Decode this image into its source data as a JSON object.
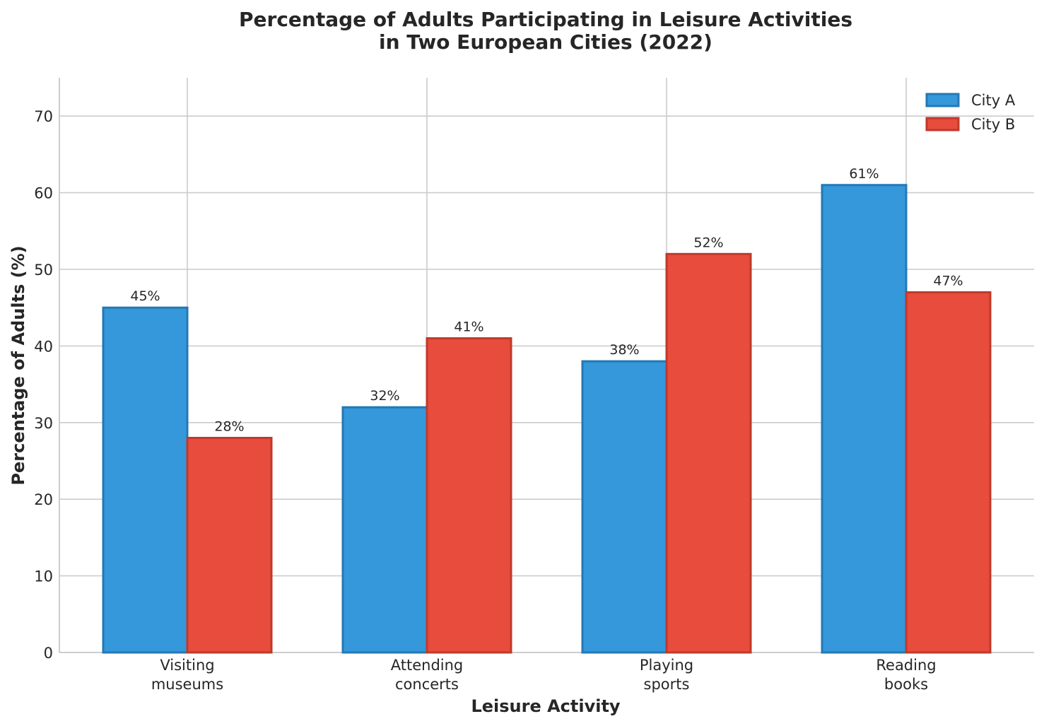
{
  "chart_data": {
    "type": "bar",
    "title_lines": [
      "Percentage of Adults Participating in Leisure Activities",
      "in Two European Cities (2022)"
    ],
    "xlabel": "Leisure Activity",
    "ylabel": "Percentage of Adults (%)",
    "categories": [
      [
        "Visiting",
        "museums"
      ],
      [
        "Attending",
        "concerts"
      ],
      [
        "Playing",
        "sports"
      ],
      [
        "Reading",
        "books"
      ]
    ],
    "series": [
      {
        "name": "City A",
        "values": [
          45,
          32,
          38,
          61
        ],
        "labels": [
          "45%",
          "32%",
          "38%",
          "61%"
        ],
        "color": "#3498db",
        "edge_color": "#2478b4"
      },
      {
        "name": "City B",
        "values": [
          28,
          41,
          52,
          47
        ],
        "labels": [
          "28%",
          "41%",
          "52%",
          "47%"
        ],
        "color": "#e74c3c",
        "edge_color": "#c0392b"
      }
    ],
    "ylim": [
      0,
      75
    ],
    "yticks": [
      "0",
      "10",
      "20",
      "30",
      "40",
      "50",
      "60",
      "70"
    ],
    "grid": true,
    "legend_position": "top-right"
  }
}
